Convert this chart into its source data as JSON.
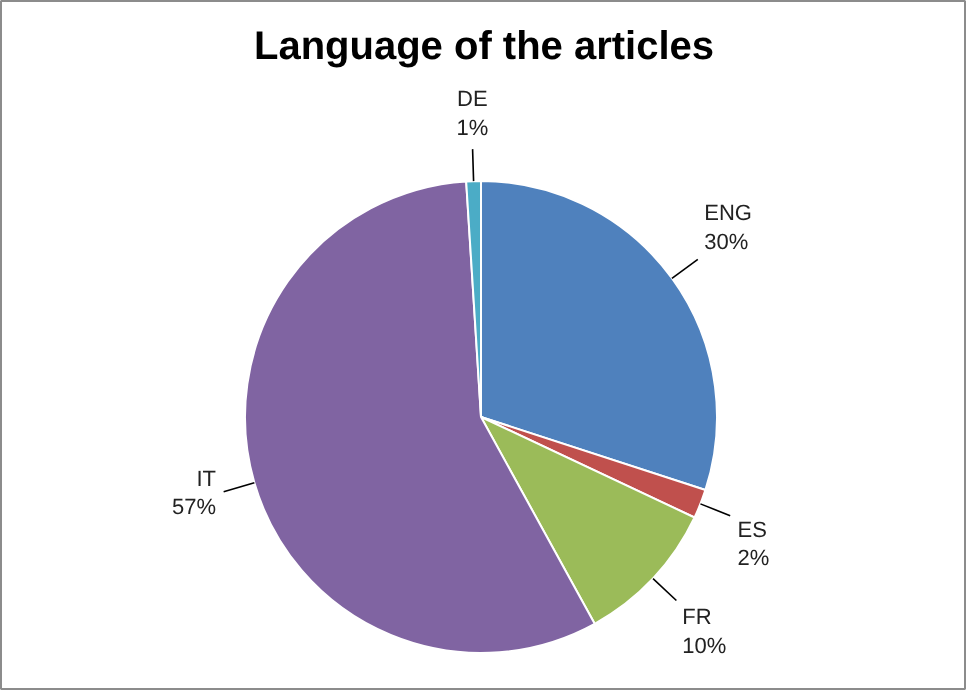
{
  "chart_data": {
    "type": "pie",
    "title": "Language of the articles",
    "categories": [
      "ENG",
      "ES",
      "FR",
      "IT",
      "DE"
    ],
    "values": [
      30,
      2,
      10,
      57,
      1
    ],
    "value_labels": [
      "30%",
      "2%",
      "10%",
      "57%",
      "1%"
    ],
    "colors": [
      "#4f81bd",
      "#c0504d",
      "#9bbb59",
      "#8064a2",
      "#4bacc6"
    ]
  }
}
